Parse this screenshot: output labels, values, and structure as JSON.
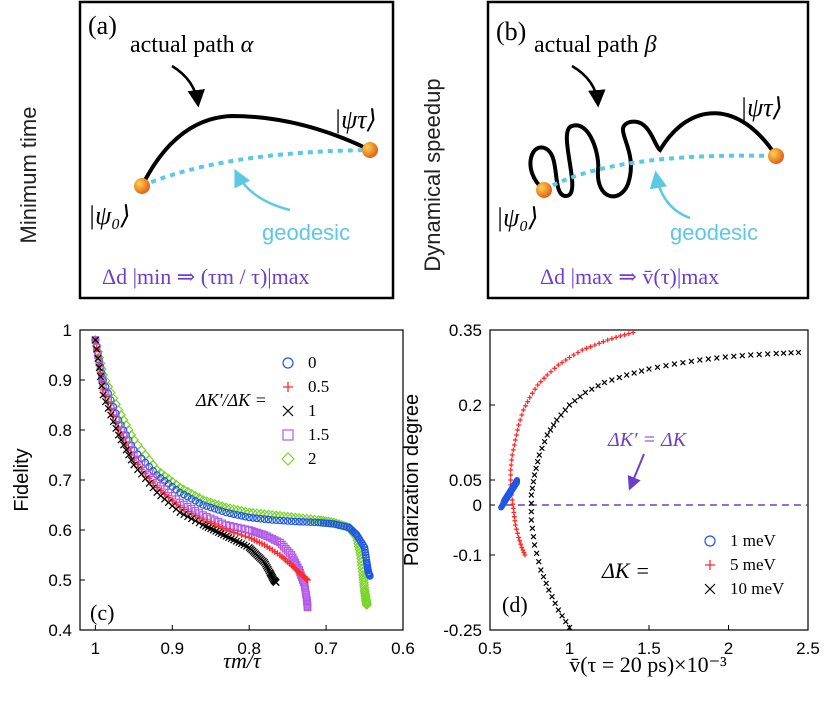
{
  "panel_a": {
    "label": "(a)",
    "side_label": "Minimum time",
    "path_label": "actual path",
    "path_symbol": "α",
    "start_state": "|ψ₀⟩",
    "end_state": "|ψτ⟩",
    "geodesic_label": "geodesic",
    "formula": "Δd |min ⇒ (τm / τ)|max"
  },
  "panel_b": {
    "label": "(b)",
    "side_label": "Dynamical speedup",
    "path_label": "actual path",
    "path_symbol": "β",
    "start_state": "|ψ₀⟩",
    "end_state": "|ψτ⟩",
    "geodesic_label": "geodesic",
    "formula": "Δd |max ⇒ v̄(τ)|max"
  },
  "colors": {
    "geodesic": "#5bc8e6",
    "formula": "#6a3fd0",
    "ball": "#f08a1a",
    "blue": "#1f56e8",
    "red": "#ff2a2a",
    "black": "#000000",
    "purple": "#b25ae8",
    "green": "#7ad62a"
  },
  "chart_data": [
    {
      "panel": "(c)",
      "type": "scatter",
      "xlabel": "τm/τ",
      "ylabel": "Fidelity",
      "xlim": [
        1.02,
        0.6
      ],
      "ylim": [
        0.4,
        1.0
      ],
      "x_reversed": true,
      "xticks": [
        1,
        0.9,
        0.8,
        0.7,
        0.6
      ],
      "xtick_labels": [
        "1",
        "0.9",
        "0.8",
        "0.7",
        "0.6"
      ],
      "yticks": [
        0.4,
        0.5,
        0.6,
        0.7,
        0.8,
        0.9,
        1.0
      ],
      "ytick_labels": [
        "0.4",
        "0.5",
        "0.6",
        "0.7",
        "0.8",
        "0.9",
        "1"
      ],
      "legend_title": "ΔK′/ΔK =",
      "series": [
        {
          "name": "0",
          "marker": "circle",
          "color": "#1f56e8",
          "x": [
            1.0,
            0.99,
            0.97,
            0.95,
            0.92,
            0.89,
            0.86,
            0.83,
            0.8,
            0.77,
            0.74,
            0.71,
            0.69,
            0.67,
            0.66,
            0.65,
            0.647,
            0.645,
            0.643
          ],
          "y": [
            0.98,
            0.9,
            0.82,
            0.76,
            0.71,
            0.675,
            0.65,
            0.635,
            0.625,
            0.62,
            0.617,
            0.615,
            0.612,
            0.605,
            0.59,
            0.565,
            0.535,
            0.515,
            0.508
          ]
        },
        {
          "name": "0.5",
          "marker": "plus",
          "color": "#ff2a2a",
          "x": [
            1.0,
            0.99,
            0.97,
            0.95,
            0.92,
            0.89,
            0.86,
            0.83,
            0.8,
            0.78,
            0.76,
            0.745,
            0.735,
            0.728,
            0.724
          ],
          "y": [
            0.98,
            0.88,
            0.8,
            0.74,
            0.685,
            0.645,
            0.62,
            0.6,
            0.585,
            0.57,
            0.55,
            0.53,
            0.515,
            0.505,
            0.5
          ]
        },
        {
          "name": "1",
          "marker": "x",
          "color": "#000000",
          "x": [
            1.0,
            0.99,
            0.97,
            0.95,
            0.92,
            0.89,
            0.86,
            0.84,
            0.82,
            0.8,
            0.79,
            0.78,
            0.773,
            0.768,
            0.765
          ],
          "y": [
            0.98,
            0.87,
            0.79,
            0.73,
            0.675,
            0.635,
            0.61,
            0.595,
            0.58,
            0.565,
            0.55,
            0.535,
            0.515,
            0.5,
            0.495
          ]
        },
        {
          "name": "1.5",
          "marker": "square",
          "color": "#b25ae8",
          "x": [
            1.0,
            0.99,
            0.97,
            0.95,
            0.92,
            0.89,
            0.86,
            0.83,
            0.8,
            0.78,
            0.76,
            0.745,
            0.735,
            0.728,
            0.725,
            0.724
          ],
          "y": [
            0.98,
            0.89,
            0.81,
            0.75,
            0.695,
            0.655,
            0.63,
            0.61,
            0.6,
            0.59,
            0.575,
            0.55,
            0.52,
            0.49,
            0.46,
            0.445
          ]
        },
        {
          "name": "2",
          "marker": "diamond",
          "color": "#7ad62a",
          "x": [
            1.0,
            0.99,
            0.97,
            0.95,
            0.92,
            0.89,
            0.86,
            0.83,
            0.8,
            0.77,
            0.74,
            0.71,
            0.69,
            0.67,
            0.66,
            0.655,
            0.652,
            0.65,
            0.648,
            0.647
          ],
          "y": [
            0.98,
            0.91,
            0.84,
            0.78,
            0.72,
            0.685,
            0.66,
            0.645,
            0.635,
            0.63,
            0.625,
            0.62,
            0.615,
            0.605,
            0.585,
            0.55,
            0.51,
            0.48,
            0.46,
            0.45
          ]
        }
      ]
    },
    {
      "panel": "(d)",
      "type": "scatter",
      "xlabel": "v̄(τ = 20 ps)×10⁻³",
      "ylabel": "Polarization degree",
      "xlim": [
        0.5,
        2.5
      ],
      "ylim": [
        -0.25,
        0.35
      ],
      "xticks": [
        0.5,
        1,
        1.5,
        2,
        2.5
      ],
      "xtick_labels": [
        "0.5",
        "1",
        "1.5",
        "2",
        "2.5"
      ],
      "yticks": [
        -0.25,
        -0.1,
        0,
        0.05,
        0.2,
        0.35
      ],
      "ytick_labels": [
        "-0.25",
        "-0.1",
        "0",
        "0.05",
        "0.2",
        "0.35"
      ],
      "legend_title": "ΔK =",
      "annotation": "ΔK′ = ΔK",
      "reference_line_y": 0,
      "series": [
        {
          "name": "1 meV",
          "marker": "circle",
          "color": "#1f56e8",
          "x": [
            0.57,
            0.58,
            0.59,
            0.6,
            0.61,
            0.62,
            0.63,
            0.64,
            0.65,
            0.66,
            0.67,
            0.67,
            0.66,
            0.65,
            0.63,
            0.61,
            0.59,
            0.58
          ],
          "y": [
            -0.005,
            0.0,
            0.005,
            0.01,
            0.015,
            0.02,
            0.025,
            0.03,
            0.035,
            0.04,
            0.045,
            0.05,
            0.045,
            0.04,
            0.03,
            0.02,
            0.01,
            0.0
          ]
        },
        {
          "name": "5 meV",
          "marker": "plus",
          "color": "#ff2a2a",
          "x": [
            0.72,
            0.7,
            0.68,
            0.66,
            0.65,
            0.64,
            0.63,
            0.63,
            0.64,
            0.66,
            0.68,
            0.71,
            0.75,
            0.8,
            0.86,
            0.93,
            1.0,
            1.08,
            1.16,
            1.24,
            1.32,
            1.4
          ],
          "y": [
            -0.1,
            -0.085,
            -0.065,
            -0.04,
            -0.015,
            0.01,
            0.04,
            0.07,
            0.1,
            0.13,
            0.16,
            0.19,
            0.215,
            0.24,
            0.26,
            0.28,
            0.295,
            0.31,
            0.32,
            0.33,
            0.338,
            0.345
          ]
        },
        {
          "name": "10 meV",
          "marker": "x",
          "color": "#000000",
          "x": [
            1.0,
            0.93,
            0.87,
            0.82,
            0.78,
            0.76,
            0.76,
            0.78,
            0.81,
            0.86,
            0.92,
            1.0,
            1.1,
            1.22,
            1.36,
            1.5,
            1.66,
            1.82,
            1.98,
            2.14,
            2.3,
            2.44
          ],
          "y": [
            -0.245,
            -0.21,
            -0.17,
            -0.13,
            -0.08,
            -0.03,
            0.02,
            0.06,
            0.1,
            0.14,
            0.17,
            0.2,
            0.225,
            0.245,
            0.26,
            0.272,
            0.282,
            0.29,
            0.296,
            0.3,
            0.303,
            0.305
          ]
        }
      ]
    }
  ]
}
